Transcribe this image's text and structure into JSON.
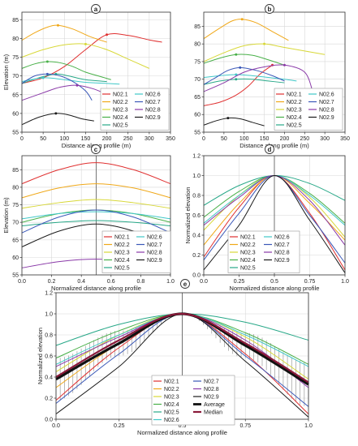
{
  "colors": {
    "N02.1": "#e03030",
    "N02.2": "#f0a818",
    "N02.3": "#d8d838",
    "N02.4": "#48b048",
    "N02.5": "#28a888",
    "N02.6": "#40c8c8",
    "N02.7": "#3a58b8",
    "N02.8": "#8a3aa8",
    "N02.9": "#1a1a1a",
    "Average": "#111111",
    "Median": "#8a1a3a"
  },
  "chart_data": [
    {
      "panel": "a",
      "type": "line",
      "xlabel": "Distance along profile (m)",
      "ylabel": "Elevation (m)",
      "xlim": [
        0,
        350
      ],
      "ylim": [
        55,
        87
      ],
      "xticks": [
        "0",
        "50",
        "100",
        "150",
        "200",
        "250",
        "300",
        "350"
      ],
      "yticks": [
        "55",
        "60",
        "65",
        "70",
        "75",
        "80",
        "85"
      ],
      "legend": "bottom-right",
      "series": [
        {
          "name": "N02.1",
          "x": [
            0,
            50,
            100,
            150,
            200,
            250,
            300,
            330
          ],
          "y": [
            68,
            69.5,
            72.5,
            77,
            81,
            80.8,
            79.6,
            79
          ]
        },
        {
          "name": "N02.2",
          "x": [
            0,
            30,
            60,
            85,
            120,
            160,
            200
          ],
          "y": [
            79.5,
            81.5,
            83,
            83.5,
            82.5,
            80.5,
            79
          ]
        },
        {
          "name": "N02.3",
          "x": [
            0,
            50,
            100,
            150,
            200,
            250,
            300
          ],
          "y": [
            75,
            77,
            78.3,
            78.5,
            77,
            74.5,
            72
          ]
        },
        {
          "name": "N02.4",
          "x": [
            0,
            30,
            60,
            90,
            120,
            150,
            180,
            210
          ],
          "y": [
            72,
            73.2,
            73.8,
            73.5,
            72.5,
            71,
            70,
            69
          ]
        },
        {
          "name": "N02.5",
          "x": [
            0,
            40,
            80,
            110,
            150,
            200
          ],
          "y": [
            68,
            69.5,
            70.5,
            70,
            69,
            68.5
          ]
        },
        {
          "name": "N02.6",
          "x": [
            0,
            50,
            100,
            150,
            200,
            230
          ],
          "y": [
            68.5,
            69.5,
            69,
            68.3,
            68,
            67.8
          ]
        },
        {
          "name": "N02.7",
          "x": [
            0,
            30,
            60,
            90,
            120,
            150,
            165
          ],
          "y": [
            68,
            70,
            70.5,
            70,
            68.5,
            66,
            63.5
          ]
        },
        {
          "name": "N02.8",
          "x": [
            0,
            50,
            90,
            130,
            170,
            200
          ],
          "y": [
            63.5,
            65.5,
            67,
            67.5,
            66.5,
            65
          ]
        },
        {
          "name": "N02.9",
          "x": [
            0,
            40,
            80,
            110,
            140,
            170
          ],
          "y": [
            57,
            59,
            60,
            59.6,
            58.6,
            58
          ]
        }
      ]
    },
    {
      "panel": "b",
      "type": "line",
      "xlabel": "Distance along profile (m)",
      "ylabel": "",
      "xlim": [
        0,
        350
      ],
      "ylim": [
        55,
        89
      ],
      "xticks": [
        "0",
        "50",
        "100",
        "150",
        "200",
        "250",
        "300",
        "350"
      ],
      "yticks": [
        "55",
        "60",
        "65",
        "70",
        "75",
        "80",
        "85"
      ],
      "legend": "bottom-right",
      "series": [
        {
          "name": "N02.1",
          "x": [
            0,
            40,
            80,
            110,
            140,
            170
          ],
          "y": [
            62.5,
            63.5,
            65.5,
            68,
            71.5,
            74
          ]
        },
        {
          "name": "N02.2",
          "x": [
            0,
            40,
            70,
            95,
            130,
            170,
            210
          ],
          "y": [
            81.5,
            84.5,
            86.5,
            87,
            86,
            83.5,
            81
          ]
        },
        {
          "name": "N02.3",
          "x": [
            0,
            50,
            100,
            150,
            200,
            250,
            300
          ],
          "y": [
            75,
            77.5,
            79.5,
            80,
            79,
            78,
            77
          ]
        },
        {
          "name": "N02.4",
          "x": [
            0,
            40,
            80,
            120,
            160,
            200
          ],
          "y": [
            74.5,
            76,
            77,
            76.8,
            75.5,
            74
          ]
        },
        {
          "name": "N02.5",
          "x": [
            0,
            40,
            80,
            120,
            160,
            200
          ],
          "y": [
            68.5,
            69.5,
            70,
            70,
            69.5,
            69
          ]
        },
        {
          "name": "N02.6",
          "x": [
            0,
            40,
            80,
            120,
            160,
            200,
            230
          ],
          "y": [
            70.5,
            71,
            71.3,
            71,
            70.5,
            70,
            69.5
          ]
        },
        {
          "name": "N02.7",
          "x": [
            0,
            30,
            60,
            90,
            130,
            170,
            200
          ],
          "y": [
            68.5,
            70.5,
            72.5,
            73.3,
            72.5,
            71,
            69.5
          ]
        },
        {
          "name": "N02.8",
          "x": [
            0,
            50,
            100,
            150,
            200,
            250,
            270
          ],
          "y": [
            66.5,
            69,
            72,
            73.5,
            74,
            72,
            66.5
          ]
        },
        {
          "name": "N02.9",
          "x": [
            0,
            30,
            60,
            90,
            120,
            150
          ],
          "y": [
            57,
            58.2,
            59,
            58.8,
            57.8,
            56.8
          ]
        }
      ]
    },
    {
      "panel": "c",
      "type": "line",
      "xlabel": "Normalized distance along profile",
      "ylabel": "Elevation (m)",
      "xlim": [
        0,
        1
      ],
      "ylim": [
        55,
        89
      ],
      "xticks": [
        "0.0",
        "0.2",
        "0.4",
        "0.6",
        "0.8",
        "1.0"
      ],
      "yticks": [
        "55",
        "60",
        "65",
        "70",
        "75",
        "80",
        "85"
      ],
      "legend": "bottom-right",
      "series": [
        {
          "name": "N02.1",
          "x": [
            0,
            0.25,
            0.5,
            0.75,
            1
          ],
          "y": [
            81,
            85,
            87,
            85,
            81
          ]
        },
        {
          "name": "N02.2",
          "x": [
            0,
            0.25,
            0.5,
            0.75,
            1
          ],
          "y": [
            77,
            79.8,
            81,
            79.8,
            77
          ]
        },
        {
          "name": "N02.3",
          "x": [
            0,
            0.25,
            0.5,
            0.75,
            1
          ],
          "y": [
            74,
            75.6,
            76.5,
            75.6,
            74
          ]
        },
        {
          "name": "N02.4",
          "x": [
            0,
            0.25,
            0.5,
            0.75,
            1
          ],
          "y": [
            70,
            72.5,
            73.5,
            72.5,
            70
          ]
        },
        {
          "name": "N02.5",
          "x": [
            0,
            0.25,
            0.5,
            0.75,
            1
          ],
          "y": [
            69,
            70,
            70.5,
            70,
            69
          ]
        },
        {
          "name": "N02.6",
          "x": [
            0,
            0.25,
            0.5,
            0.75,
            1
          ],
          "y": [
            71,
            72.5,
            73,
            72.5,
            71
          ]
        },
        {
          "name": "N02.7",
          "x": [
            0,
            0.25,
            0.5,
            0.75,
            1
          ],
          "y": [
            67,
            71.5,
            73.5,
            71.5,
            67
          ]
        },
        {
          "name": "N02.8",
          "x": [
            0,
            0.25,
            0.5,
            0.75,
            1
          ],
          "y": [
            57,
            58.8,
            59.5,
            58.8,
            57
          ]
        },
        {
          "name": "N02.9",
          "x": [
            0,
            0.25,
            0.5,
            0.75,
            1
          ],
          "y": [
            63,
            67.5,
            69.5,
            67.5,
            63
          ]
        }
      ]
    },
    {
      "panel": "d",
      "type": "line",
      "xlabel": "Normalized distance along profile",
      "ylabel": "Normalized elevation",
      "xlim": [
        0,
        1
      ],
      "ylim": [
        0,
        1.2
      ],
      "xticks": [
        "0.0",
        "0.25",
        "0.5",
        "0.75",
        "1.0"
      ],
      "yticks": [
        "0.0",
        "0.2",
        "0.4",
        "0.6",
        "0.8",
        "1.0",
        "1.2"
      ],
      "legend": "bottom-center",
      "series": [
        {
          "name": "N02.1",
          "x": [
            0,
            0.25,
            0.5,
            0.75,
            1
          ],
          "y": [
            0.18,
            0.68,
            1,
            0.62,
            0.05
          ]
        },
        {
          "name": "N02.2",
          "x": [
            0,
            0.25,
            0.5,
            0.75,
            1
          ],
          "y": [
            0.3,
            0.72,
            1,
            0.72,
            0.35
          ]
        },
        {
          "name": "N02.3",
          "x": [
            0,
            0.25,
            0.5,
            0.75,
            1
          ],
          "y": [
            0.45,
            0.8,
            1,
            0.78,
            0.38
          ]
        },
        {
          "name": "N02.4",
          "x": [
            0,
            0.25,
            0.5,
            0.75,
            1
          ],
          "y": [
            0.58,
            0.84,
            1,
            0.82,
            0.52
          ]
        },
        {
          "name": "N02.5",
          "x": [
            0,
            0.25,
            0.5,
            0.75,
            1
          ],
          "y": [
            0.7,
            0.9,
            1,
            0.92,
            0.75
          ]
        },
        {
          "name": "N02.6",
          "x": [
            0,
            0.25,
            0.5,
            0.75,
            1
          ],
          "y": [
            0.52,
            0.8,
            1,
            0.8,
            0.5
          ]
        },
        {
          "name": "N02.7",
          "x": [
            0,
            0.25,
            0.5,
            0.75,
            1
          ],
          "y": [
            0.15,
            0.62,
            1,
            0.6,
            0.12
          ]
        },
        {
          "name": "N02.8",
          "x": [
            0,
            0.25,
            0.5,
            0.75,
            1
          ],
          "y": [
            0.5,
            0.78,
            1,
            0.75,
            0.3
          ]
        },
        {
          "name": "N02.9",
          "x": [
            0,
            0.25,
            0.5,
            0.75,
            1
          ],
          "y": [
            0.05,
            0.5,
            1,
            0.55,
            0.02
          ]
        }
      ]
    },
    {
      "panel": "e",
      "type": "line",
      "xlabel": "Normalized distance along profile",
      "ylabel": "Normalized elevation",
      "xlim": [
        0,
        1
      ],
      "ylim": [
        0,
        1.2
      ],
      "xticks": [
        "0.0",
        "0.25",
        "0.5",
        "0.75",
        "1.0"
      ],
      "yticks": [
        "0.0",
        "0.2",
        "0.4",
        "0.6",
        "0.8",
        "1.0",
        "1.2"
      ],
      "legend": "bottom-center",
      "series": [
        {
          "name": "N02.1",
          "x": [
            0,
            0.25,
            0.5,
            0.75,
            1
          ],
          "y": [
            0.18,
            0.68,
            1,
            0.62,
            0.05
          ]
        },
        {
          "name": "N02.2",
          "x": [
            0,
            0.25,
            0.5,
            0.75,
            1
          ],
          "y": [
            0.3,
            0.72,
            1,
            0.72,
            0.35
          ]
        },
        {
          "name": "N02.3",
          "x": [
            0,
            0.25,
            0.5,
            0.75,
            1
          ],
          "y": [
            0.45,
            0.8,
            1,
            0.78,
            0.38
          ]
        },
        {
          "name": "N02.4",
          "x": [
            0,
            0.25,
            0.5,
            0.75,
            1
          ],
          "y": [
            0.58,
            0.84,
            1,
            0.82,
            0.52
          ]
        },
        {
          "name": "N02.5",
          "x": [
            0,
            0.25,
            0.5,
            0.75,
            1
          ],
          "y": [
            0.7,
            0.9,
            1,
            0.92,
            0.75
          ]
        },
        {
          "name": "N02.6",
          "x": [
            0,
            0.25,
            0.5,
            0.75,
            1
          ],
          "y": [
            0.52,
            0.8,
            1,
            0.8,
            0.5
          ]
        },
        {
          "name": "N02.7",
          "x": [
            0,
            0.25,
            0.5,
            0.75,
            1
          ],
          "y": [
            0.15,
            0.62,
            1,
            0.6,
            0.12
          ]
        },
        {
          "name": "N02.8",
          "x": [
            0,
            0.25,
            0.5,
            0.75,
            1
          ],
          "y": [
            0.5,
            0.78,
            1,
            0.75,
            0.3
          ]
        },
        {
          "name": "N02.9",
          "x": [
            0,
            0.25,
            0.5,
            0.75,
            1
          ],
          "y": [
            0.05,
            0.5,
            1,
            0.55,
            0.02
          ]
        },
        {
          "name": "Average",
          "x": [
            0,
            0.25,
            0.5,
            0.75,
            1
          ],
          "y": [
            0.38,
            0.72,
            1,
            0.7,
            0.33
          ]
        },
        {
          "name": "Median",
          "x": [
            0,
            0.25,
            0.5,
            0.75,
            1
          ],
          "y": [
            0.4,
            0.75,
            1,
            0.72,
            0.35
          ]
        }
      ],
      "band": {
        "x": [
          0,
          0.25,
          0.5,
          0.75,
          1
        ],
        "lower": [
          0.18,
          0.6,
          1,
          0.58,
          0.12
        ],
        "upper": [
          0.58,
          0.84,
          1,
          0.82,
          0.54
        ]
      }
    }
  ]
}
